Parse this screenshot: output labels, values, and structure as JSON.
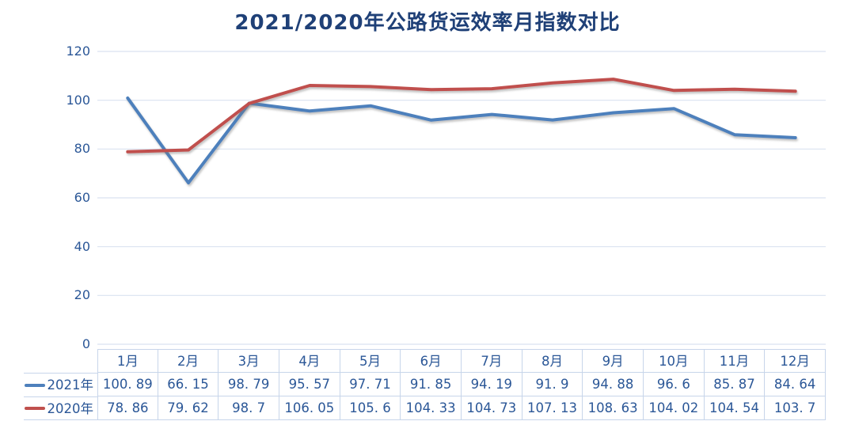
{
  "title": "2021/2020年公路货运效率月指数对比",
  "colors": {
    "title_text": "#1F4077",
    "axis_text": "#2B5797",
    "gridline": "#D9E2F1",
    "table_border": "#C7D5EA",
    "series_2021": "#4E80BC",
    "series_2020": "#C0504D",
    "reference_line": "#BF4342",
    "background": "#FFFFFF"
  },
  "chart_data": {
    "type": "line",
    "title": "2021/2020年公路货运效率月指数对比",
    "categories": [
      "1月",
      "2月",
      "3月",
      "4月",
      "5月",
      "6月",
      "7月",
      "8月",
      "9月",
      "10月",
      "11月",
      "12月"
    ],
    "series": [
      {
        "name": "2021年",
        "color": "#4E80BC",
        "values": [
          100.89,
          66.15,
          98.79,
          95.57,
          97.71,
          91.85,
          94.19,
          91.9,
          94.88,
          96.6,
          85.87,
          84.64
        ]
      },
      {
        "name": "2020年",
        "color": "#C0504D",
        "values": [
          78.86,
          79.62,
          98.7,
          106.05,
          105.6,
          104.33,
          104.73,
          107.13,
          108.63,
          104.02,
          104.54,
          103.7
        ]
      }
    ],
    "reference_line": {
      "value": 100,
      "style": "dotted",
      "color": "#BF4342"
    },
    "xlabel": "",
    "ylabel": "",
    "ylim": [
      0,
      120
    ],
    "y_ticks": [
      0,
      20,
      40,
      60,
      80,
      100,
      120
    ],
    "grid": true,
    "legend_position": "table-left"
  },
  "table": {
    "columns": [
      "1月",
      "2月",
      "3月",
      "4月",
      "5月",
      "6月",
      "7月",
      "8月",
      "9月",
      "10月",
      "11月",
      "12月"
    ],
    "rows": [
      {
        "label": "2021年",
        "swatch_color": "#4E80BC",
        "values": [
          "100. 89",
          "66. 15",
          "98. 79",
          "95. 57",
          "97. 71",
          "91. 85",
          "94. 19",
          "91. 9",
          "94. 88",
          "96. 6",
          "85. 87",
          "84. 64"
        ]
      },
      {
        "label": "2020年",
        "swatch_color": "#C0504D",
        "values": [
          "78. 86",
          "79. 62",
          "98. 7",
          "106. 05",
          "105. 6",
          "104. 33",
          "104. 73",
          "107. 13",
          "108. 63",
          "104. 02",
          "104. 54",
          "103. 7"
        ]
      }
    ]
  }
}
